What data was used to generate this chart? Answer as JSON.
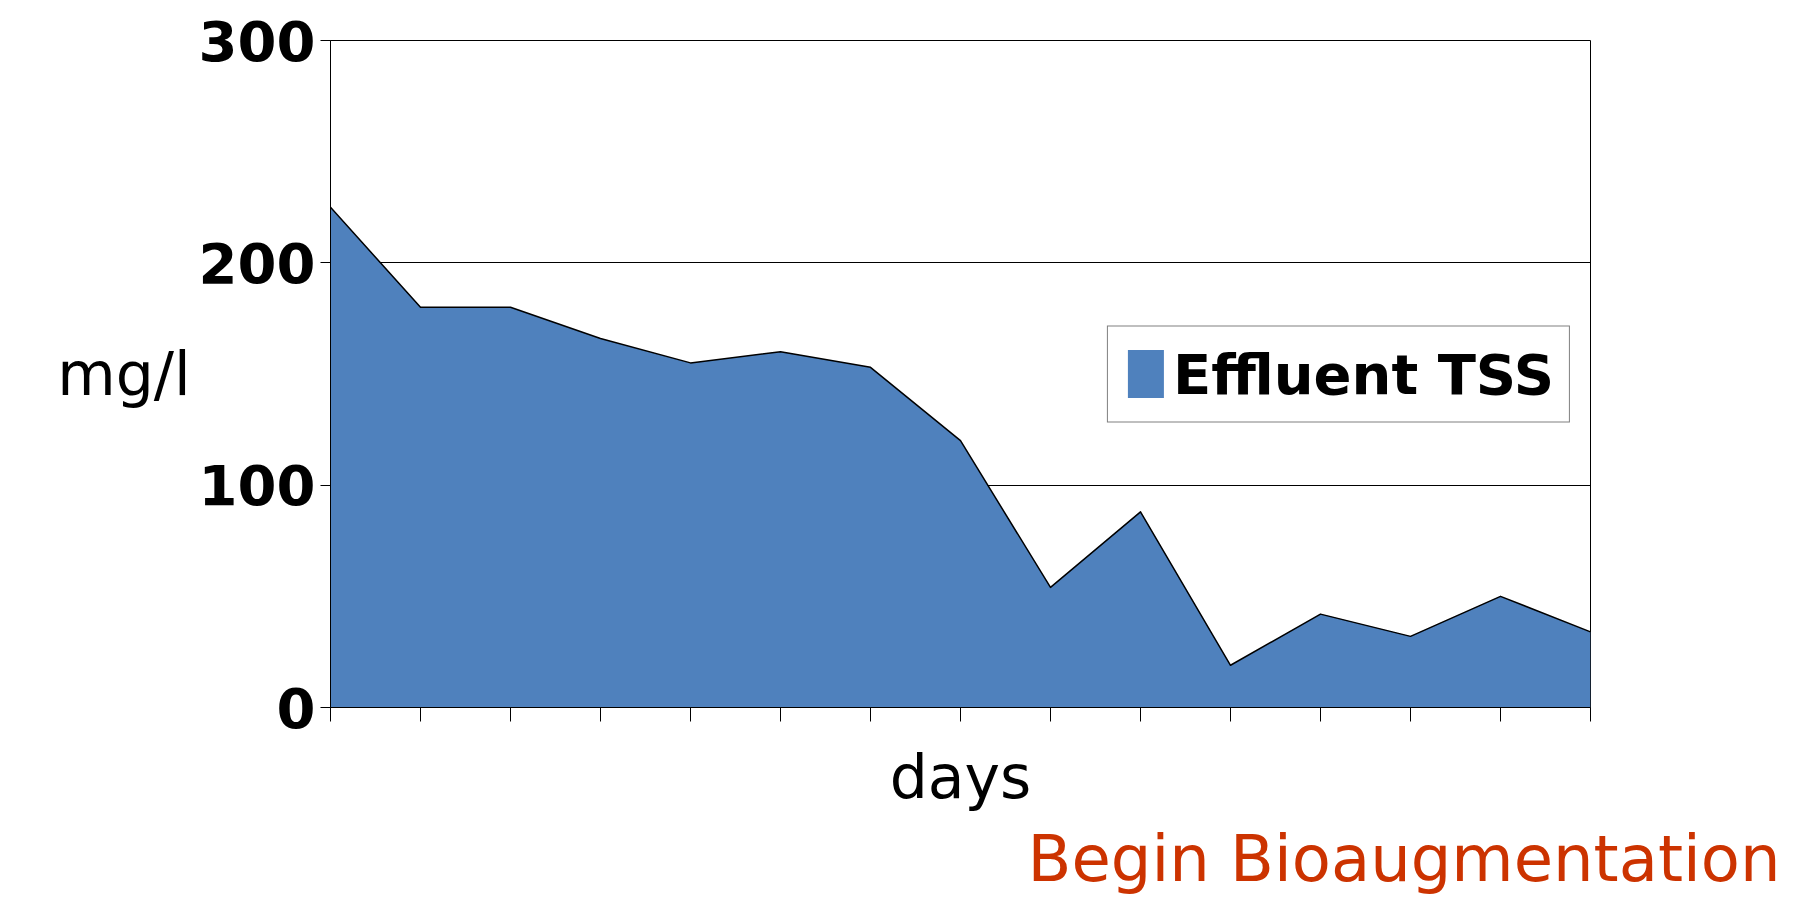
{
  "chart_data": {
    "type": "area",
    "xlabel": "days",
    "ylabel": "mg/l",
    "categories": [
      null,
      null,
      null,
      null,
      null,
      null,
      null,
      null,
      null,
      null,
      null,
      null,
      null,
      null,
      null
    ],
    "series": [
      {
        "name": "Effluent TSS",
        "color": "#4f81bd",
        "values": [
          225,
          180,
          180,
          166,
          155,
          160,
          153,
          120,
          54,
          88,
          19,
          42,
          32,
          50,
          34
        ]
      }
    ],
    "ylim": [
      0,
      300
    ],
    "yticks": [
      0,
      100,
      200,
      300
    ],
    "grid": "y",
    "legend": "right",
    "annotations": [
      "Begin Bioaugmentation"
    ]
  }
}
